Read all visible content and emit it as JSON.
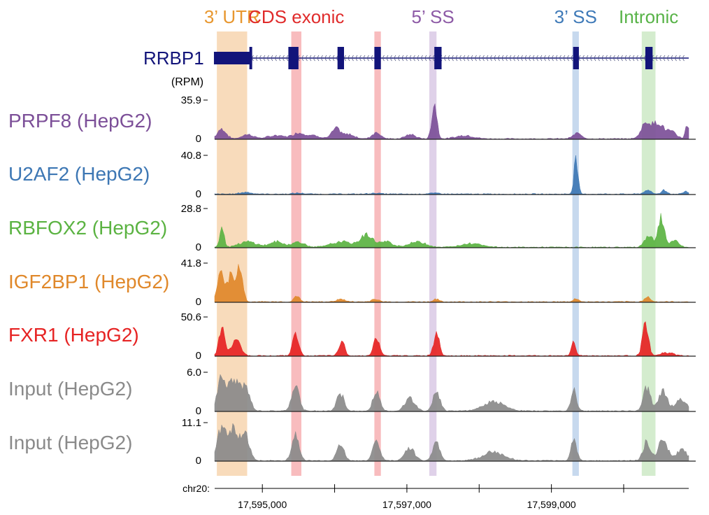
{
  "chart_data": {
    "type": "area",
    "gene": {
      "name": "RRBP1",
      "color": "#12147a"
    },
    "y_unit_label": "(RPM)",
    "x_axis": {
      "label": "chr20:",
      "tick_labels": [
        "17,595,000",
        "17,597,000",
        "17,599,000"
      ],
      "tick_positions": [
        17595000,
        17597000,
        17599000
      ],
      "minor_ticks": [
        17596000,
        17598000,
        17600000
      ],
      "range": [
        17594340,
        17600900
      ]
    },
    "categories": [
      {
        "name": "3’ UTR",
        "color": "#e8972f",
        "band_color": "#f6cfa4",
        "range": [
          17594370,
          17594790
        ]
      },
      {
        "name": "CDS exonic",
        "color": "#e02b2b",
        "band_color": "#f5a5a8",
        "range": [
          17595400,
          17595540
        ]
      },
      {
        "name": "",
        "color": "#e02b2b",
        "band_color": "#f5a5a8",
        "range": [
          17596550,
          17596640
        ]
      },
      {
        "name": "5’ SS",
        "color": "#8d5aa6",
        "band_color": "#d4c1e2",
        "range": [
          17597310,
          17597410
        ]
      },
      {
        "name": "3’ SS",
        "color": "#3f7ab8",
        "band_color": "#b4cce8",
        "range": [
          17599290,
          17599380
        ]
      },
      {
        "name": "Intronic",
        "color": "#58b348",
        "band_color": "#c5e6bd",
        "range": [
          17600250,
          17600440
        ]
      }
    ],
    "exons": [
      [
        17594330,
        17594830
      ],
      [
        17595360,
        17595500
      ],
      [
        17596040,
        17596130
      ],
      [
        17596550,
        17596640
      ],
      [
        17597380,
        17597480
      ],
      [
        17599300,
        17599380
      ],
      [
        17600300,
        17600400
      ]
    ],
    "series": [
      {
        "name": "PRPF8 (HepG2)",
        "color": "#7c4f98",
        "ymax_label": "35.9",
        "ymin_label": "0",
        "ymax": 35.9,
        "peaks": [
          [
            17594440,
            9,
            60
          ],
          [
            17594800,
            4,
            80
          ],
          [
            17595200,
            3,
            120
          ],
          [
            17595500,
            5,
            80
          ],
          [
            17595700,
            3,
            100
          ],
          [
            17596020,
            9,
            60
          ],
          [
            17596200,
            4,
            80
          ],
          [
            17596580,
            6,
            60
          ],
          [
            17597050,
            4,
            70
          ],
          [
            17597380,
            33,
            35
          ],
          [
            17597800,
            3,
            120
          ],
          [
            17599360,
            5,
            60
          ],
          [
            17600320,
            16,
            70
          ],
          [
            17600480,
            13,
            60
          ],
          [
            17600640,
            7,
            80
          ],
          [
            17600880,
            13,
            25
          ]
        ]
      },
      {
        "name": "U2AF2 (HepG2)",
        "color": "#3d77b4",
        "ymax_label": "40.8",
        "ymin_label": "0",
        "ymax": 40.8,
        "peaks": [
          [
            17594770,
            2,
            80
          ],
          [
            17595500,
            1,
            80
          ],
          [
            17596560,
            1,
            80
          ],
          [
            17597380,
            1,
            80
          ],
          [
            17599340,
            38,
            28
          ],
          [
            17600330,
            4,
            50
          ],
          [
            17600560,
            4,
            40
          ],
          [
            17600860,
            3,
            40
          ]
        ]
      },
      {
        "name": "RBFOX2 (HepG2)",
        "color": "#5bb342",
        "ymax_label": "28.8",
        "ymin_label": "0",
        "ymax": 28.8,
        "peaks": [
          [
            17594440,
            16,
            30
          ],
          [
            17594800,
            4,
            120
          ],
          [
            17595200,
            4,
            100
          ],
          [
            17595500,
            4,
            80
          ],
          [
            17596100,
            4,
            150
          ],
          [
            17596440,
            9,
            80
          ],
          [
            17596700,
            4,
            100
          ],
          [
            17597150,
            4,
            120
          ],
          [
            17597900,
            3,
            140
          ],
          [
            17600350,
            8,
            60
          ],
          [
            17600520,
            22,
            40
          ],
          [
            17600700,
            5,
            60
          ]
        ]
      },
      {
        "name": "IGF2BP1 (HepG2)",
        "color": "#e0882a",
        "ymax_label": "41.8",
        "ymin_label": "0",
        "ymax": 41.8,
        "peaks": [
          [
            17594420,
            34,
            40
          ],
          [
            17594560,
            28,
            50
          ],
          [
            17594690,
            36,
            40
          ],
          [
            17595480,
            6,
            40
          ],
          [
            17596080,
            3,
            60
          ],
          [
            17596560,
            3,
            50
          ],
          [
            17597400,
            3,
            40
          ],
          [
            17599340,
            3,
            40
          ],
          [
            17600330,
            6,
            40
          ]
        ]
      },
      {
        "name": "FXR1 (HepG2)",
        "color": "#e62323",
        "ymax_label": "50.6",
        "ymin_label": "0",
        "ymax": 50.6,
        "peaks": [
          [
            17594440,
            38,
            40
          ],
          [
            17594640,
            22,
            60
          ],
          [
            17595460,
            32,
            40
          ],
          [
            17596100,
            18,
            40
          ],
          [
            17596580,
            24,
            40
          ],
          [
            17597410,
            28,
            40
          ],
          [
            17599310,
            18,
            30
          ],
          [
            17600300,
            42,
            40
          ],
          [
            17600600,
            4,
            80
          ]
        ]
      },
      {
        "name": "Input (HepG2)",
        "color": "#8a8a8a",
        "ymax_label": "6.0",
        "ymin_label": "0",
        "ymax": 6.0,
        "peaks": [
          [
            17594440,
            5.4,
            60
          ],
          [
            17594600,
            4.8,
            60
          ],
          [
            17594760,
            4.2,
            60
          ],
          [
            17595460,
            3.9,
            50
          ],
          [
            17596080,
            2.6,
            50
          ],
          [
            17596580,
            2.8,
            50
          ],
          [
            17597040,
            1.9,
            70
          ],
          [
            17597410,
            2.9,
            50
          ],
          [
            17598200,
            1.4,
            150
          ],
          [
            17599310,
            3.2,
            40
          ],
          [
            17600320,
            3.6,
            50
          ],
          [
            17600540,
            3.2,
            60
          ],
          [
            17600800,
            1.7,
            80
          ]
        ]
      },
      {
        "name": "Input (HepG2)",
        "color": "#8a8a8a",
        "ymax_label": "11.1",
        "ymin_label": "0",
        "ymax": 11.1,
        "peaks": [
          [
            17594440,
            10,
            60
          ],
          [
            17594600,
            9,
            60
          ],
          [
            17594760,
            8,
            60
          ],
          [
            17595460,
            7.5,
            50
          ],
          [
            17596080,
            4.5,
            50
          ],
          [
            17596580,
            5.5,
            50
          ],
          [
            17597040,
            3.5,
            70
          ],
          [
            17597410,
            5,
            50
          ],
          [
            17598200,
            2.5,
            150
          ],
          [
            17599310,
            6,
            40
          ],
          [
            17600320,
            5.5,
            50
          ],
          [
            17600540,
            6.8,
            60
          ],
          [
            17600800,
            3,
            80
          ]
        ]
      }
    ]
  }
}
